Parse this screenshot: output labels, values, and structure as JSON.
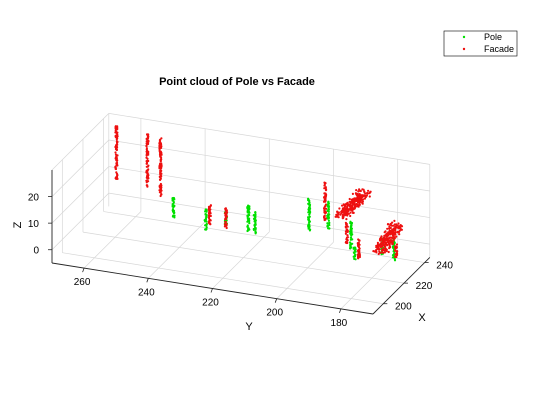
{
  "chart_data": {
    "type": "scatter",
    "projection": "3d",
    "title": "Point cloud of Pole vs Facade",
    "xlabel": "X",
    "ylabel": "Y",
    "zlabel": "Z",
    "xlim": [
      190,
      245
    ],
    "ylim": [
      170,
      270
    ],
    "zlim": [
      -5,
      30
    ],
    "x_ticks": [
      200,
      220,
      240
    ],
    "y_ticks": [
      180,
      200,
      220,
      240,
      260
    ],
    "z_ticks": [
      0,
      10,
      20
    ],
    "grid": true,
    "legend_position": "top-right",
    "series": [
      {
        "name": "Pole",
        "color": "#00e000",
        "marker": "dot",
        "clusters": [
          {
            "x": [
              233,
              233
            ],
            "y": [
              246,
              246
            ],
            "z": [
              0,
              8
            ]
          },
          {
            "x": [
              227,
              227
            ],
            "y": [
              234,
              234
            ],
            "z": [
              0,
              8
            ]
          },
          {
            "x": [
              231,
              231
            ],
            "y": [
              229,
              229
            ],
            "z": [
              1,
              6
            ]
          },
          {
            "x": [
              231,
              231
            ],
            "y": [
              222,
              222
            ],
            "z": [
              0,
              10
            ]
          },
          {
            "x": [
              231,
              231
            ],
            "y": [
              220,
              220
            ],
            "z": [
              0,
              8
            ]
          },
          {
            "x": [
              240,
              240
            ],
            "y": [
              206,
              206
            ],
            "z": [
              0,
              12
            ]
          },
          {
            "x": [
              240,
              240
            ],
            "y": [
              200,
              200
            ],
            "z": [
              2,
              12
            ]
          },
          {
            "x": [
              231,
              231
            ],
            "y": [
              190,
              190
            ],
            "z": [
              0,
              10
            ]
          },
          {
            "x": [
              222,
              222
            ],
            "y": [
              186,
              186
            ],
            "z": [
              0,
              5
            ]
          },
          {
            "x": [
              230,
              230
            ],
            "y": [
              180,
              180
            ],
            "z": [
              0,
              6
            ]
          },
          {
            "x": [
              229,
              229
            ],
            "y": [
              176,
              176
            ],
            "z": [
              -1,
              8
            ]
          }
        ]
      },
      {
        "name": "Facade",
        "color": "#ee1010",
        "marker": "dot",
        "clusters": [
          {
            "x": [
              240,
              240
            ],
            "y": [
              266,
              266
            ],
            "z": [
              8,
              28
            ]
          },
          {
            "x": [
              242,
              242
            ],
            "y": [
              257,
              257
            ],
            "z": [
              6,
              26
            ]
          },
          {
            "x": [
              236,
              236
            ],
            "y": [
              251,
              251
            ],
            "z": [
              6,
              28
            ]
          },
          {
            "x": [
              231,
              231
            ],
            "y": [
              234,
              234
            ],
            "z": [
              0,
              8
            ]
          },
          {
            "x": [
              231,
              231
            ],
            "y": [
              229,
              229
            ],
            "z": [
              0,
              8
            ]
          },
          {
            "x": [
              240,
              240
            ],
            "y": [
              201,
              201
            ],
            "z": [
              5,
              19
            ]
          },
          {
            "x": [
              243,
              238
            ],
            "y": [
              197,
              188
            ],
            "z": [
              6,
              19
            ]
          },
          {
            "x": [
              230,
              230
            ],
            "y": [
              191,
              191
            ],
            "z": [
              2,
              10
            ]
          },
          {
            "x": [
              223,
              223
            ],
            "y": [
              185,
              185
            ],
            "z": [
              0,
              8
            ]
          },
          {
            "x": [
              234,
              213
            ],
            "y": [
              182,
              170
            ],
            "z": [
              -1,
              20
            ]
          },
          {
            "x": [
              231,
              231
            ],
            "y": [
              176,
              176
            ],
            "z": [
              -1,
              4
            ]
          }
        ]
      }
    ]
  }
}
